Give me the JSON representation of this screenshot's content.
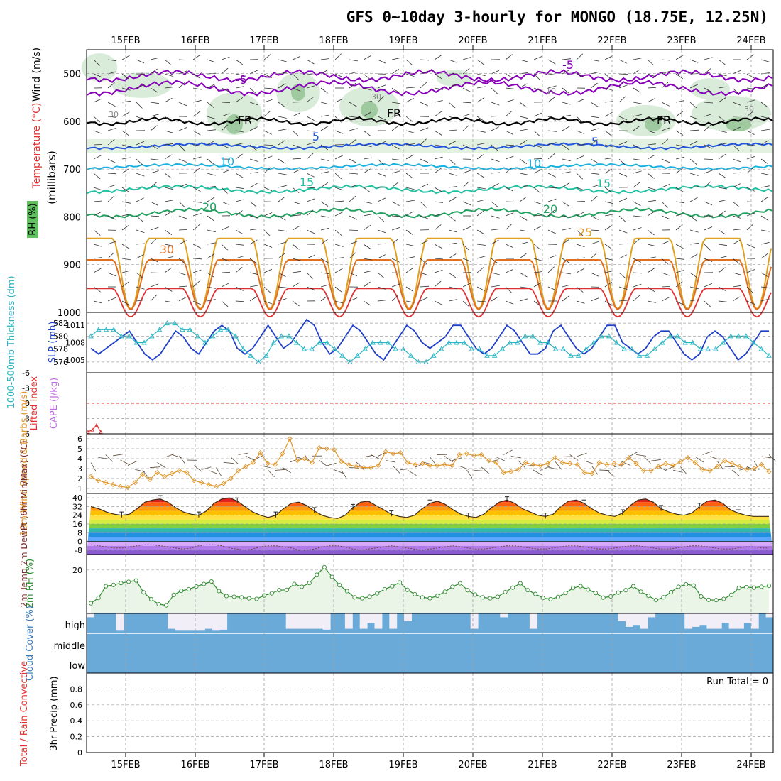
{
  "title": "GFS 0~10day 3-hourly for MONGO (18.75E, 12.25N)",
  "colors": {
    "grid": "#a0a0a0",
    "frame": "#000000",
    "slp": "#1f3fc8",
    "thickness": "#2bb5c4",
    "li": "#e03030",
    "cape": "#c070e0",
    "wind": "#e0962a",
    "rh": "#2e8b2e",
    "rh_fill": "#eaf5e8",
    "cloud": "#6aaad8",
    "cloud_bg": "#f1eef8",
    "barb": "#303030",
    "temp_heat": "#e33a22",
    "purple": "#8800bb",
    "blue": "#2255dd",
    "cyan": "#1ab0e0",
    "teal": "#20c0a0",
    "green": "#22a060",
    "orange": "#e0a020",
    "dorange": "#e07020",
    "red": "#e03030"
  },
  "chart_data": [
    {
      "id": "upper-air",
      "type": "heatmap",
      "xlabel_top": [
        "15FEB",
        "16FEB",
        "17FEB",
        "18FEB",
        "19FEB",
        "20FEB",
        "21FEB",
        "22FEB",
        "23FEB",
        "24FEB"
      ],
      "xlabel_bottom": [
        "15FEB",
        "16FEB",
        "17FEB",
        "18FEB",
        "19FEB",
        "20FEB",
        "21FEB",
        "22FEB",
        "23FEB",
        "24FEB"
      ],
      "ylabel": "(millibars)",
      "ylabel_wind": "Wind (m/s)",
      "ylabel_temp": "Temperature (°C)",
      "ylabel_rh": "RH (%)",
      "yticks": [
        "500",
        "600",
        "700",
        "800",
        "900",
        "1000"
      ],
      "ylim": [
        450,
        1000
      ],
      "temperature_contours": [
        {
          "label": "-5",
          "level_mb": [
            520,
            500
          ],
          "color": "purple"
        },
        {
          "label": "FR",
          "level_mb": 600,
          "color": "black"
        },
        {
          "label": "5",
          "level_mb": 650,
          "color": "blue"
        },
        {
          "label": "10",
          "level_mb": 693,
          "color": "cyan"
        },
        {
          "label": "15",
          "level_mb": 740,
          "color": "teal"
        },
        {
          "label": "20",
          "level_mb": 790,
          "color": "green"
        },
        {
          "label": "25",
          "level_mb": 845,
          "color": "orange"
        },
        {
          "label": "30",
          "level_mb": 880,
          "color": "dorange"
        }
      ],
      "inline_labels": [
        "-5",
        "-5",
        "FR",
        "FR",
        "FR",
        "5",
        "5",
        "10",
        "10",
        "15",
        "15",
        "20",
        "20",
        "25",
        "30",
        "30",
        "30",
        "10",
        "30"
      ]
    },
    {
      "id": "thickness-slp",
      "type": "line",
      "ylabel_left": "1000-500mb Thickness (dm)",
      "ylabel_right": "SLP (mb)",
      "yticks_left": [
        "576",
        "578",
        "580",
        "582"
      ],
      "yticks_right": [
        "1005",
        "1008",
        "1011"
      ],
      "series": [
        {
          "name": "SLP (mb)",
          "values": [
            1007,
            1006,
            1007,
            1008,
            1009,
            1010,
            1008,
            1006,
            1005,
            1006,
            1008,
            1010,
            1009,
            1007,
            1006,
            1008,
            1010,
            1011,
            1010,
            1007,
            1006,
            1007,
            1009,
            1011,
            1009,
            1007,
            1008,
            1010,
            1012,
            1011,
            1008,
            1006,
            1007,
            1009,
            1011,
            1010,
            1008,
            1006,
            1005,
            1007,
            1009,
            1011,
            1010,
            1008,
            1007,
            1008,
            1009,
            1011,
            1011,
            1009,
            1007,
            1006,
            1007,
            1009,
            1011,
            1010,
            1008,
            1006,
            1006,
            1007,
            1010,
            1011,
            1009,
            1007,
            1006,
            1007,
            1009,
            1011,
            1011,
            1008,
            1007,
            1006,
            1007,
            1009,
            1010,
            1010,
            1008,
            1006,
            1005,
            1006,
            1009,
            1010,
            1009,
            1007,
            1005,
            1006,
            1008,
            1010,
            1010
          ]
        },
        {
          "name": "1000-500mb Thickness (dm)",
          "values": [
            580,
            581,
            581,
            581,
            580,
            580,
            579,
            579,
            580,
            581,
            582,
            582,
            581,
            581,
            580,
            579,
            580,
            581,
            581,
            580,
            578,
            577,
            576,
            577,
            579,
            580,
            580,
            579,
            578,
            578,
            579,
            579,
            578,
            577,
            576,
            577,
            578,
            579,
            579,
            579,
            578,
            578,
            577,
            576,
            576,
            577,
            578,
            579,
            579,
            579,
            578,
            578,
            577,
            577,
            578,
            579,
            579,
            580,
            580,
            579,
            579,
            578,
            578,
            577,
            577,
            578,
            579,
            580,
            580,
            579,
            578,
            578,
            577,
            577,
            578,
            579,
            580,
            580,
            579,
            579,
            578,
            578,
            578,
            579,
            580,
            580,
            580,
            579,
            578,
            577
          ]
        }
      ]
    },
    {
      "id": "li-cape",
      "type": "line",
      "ylabel_left": "Lifted Index",
      "ylabel_right": "CAPE (J/kg)",
      "yticks": [
        "6",
        "3",
        "0",
        "-3",
        "-6"
      ],
      "series": [
        {
          "name": "Lifted Index",
          "values": [
            5.6,
            5.2,
            4.3,
            5.6
          ]
        },
        {
          "name": "CAPE (J/kg)",
          "values": []
        }
      ]
    },
    {
      "id": "wind10m",
      "type": "line",
      "ylabel": "10m Wind Speed & Barbs (m/s)",
      "yticks": [
        "1",
        "2",
        "3",
        "4",
        "5",
        "6"
      ],
      "ylim": [
        0.5,
        6.5
      ],
      "series": [
        {
          "name": "10m Wind Speed",
          "values": [
            2.2,
            1.8,
            1.6,
            1.4,
            1.2,
            1.1,
            1.6,
            2.4,
            1.9,
            2.6,
            2.2,
            2.5,
            2.8,
            2.6,
            1.8,
            1.6,
            1.4,
            1.2,
            1.5,
            2.0,
            2.8,
            3.2,
            3.6,
            4.6,
            3.5,
            3.4,
            4.5,
            6.0,
            3.8,
            4.0,
            3.6,
            5.1,
            5.0,
            4.9,
            3.7,
            3.4,
            3.2,
            3.1,
            3.1,
            3.3,
            4.7,
            4.5,
            4.6,
            3.6,
            3.4,
            3.5,
            3.3,
            3.3,
            3.4,
            3.3,
            4.4,
            4.5,
            4.3,
            4.4,
            3.8,
            3.6,
            2.6,
            2.7,
            2.9,
            3.6,
            3.4,
            3.3,
            3.5,
            4.1,
            3.6,
            3.5,
            3.4,
            2.6,
            2.5,
            3.6,
            3.4,
            3.5,
            3.4,
            4.1,
            3.5,
            2.8,
            2.8,
            3.2,
            3.5,
            3.3,
            3.7,
            4.1,
            3.6,
            2.9,
            2.8,
            3.2,
            3.8,
            3.5,
            3.2,
            2.9,
            3.0,
            3.4,
            2.7
          ]
        }
      ]
    },
    {
      "id": "temp2m",
      "type": "line",
      "ylabel": "2m Temp 2m DewPt (6hr Min/Max) (°C)",
      "yticks": [
        "-8",
        "0",
        "8",
        "16",
        "24",
        "32",
        "40"
      ],
      "ylim": [
        -12,
        44
      ],
      "series": [
        {
          "name": "2m Temp",
          "values": [
            32,
            30,
            27,
            25,
            24,
            25,
            30,
            36,
            38,
            39,
            36,
            31,
            27,
            25,
            24,
            28,
            35,
            39,
            40,
            37,
            32,
            27,
            24,
            22,
            24,
            30,
            35,
            36,
            33,
            28,
            24,
            22,
            21,
            24,
            31,
            36,
            37,
            33,
            29,
            25,
            23,
            22,
            24,
            30,
            35,
            37,
            34,
            29,
            25,
            23,
            22,
            25,
            31,
            36,
            38,
            35,
            30,
            27,
            24,
            23,
            25,
            32,
            37,
            38,
            35,
            30,
            26,
            24,
            23,
            26,
            33,
            38,
            39,
            36,
            30,
            27,
            25,
            24,
            26,
            32,
            37,
            38,
            35,
            29,
            26,
            24,
            23,
            23,
            23
          ]
        },
        {
          "name": "2m DewPt",
          "values": [
            -3,
            -4,
            -5,
            -6,
            -6,
            -5,
            -4,
            -3,
            -3,
            -4,
            -5,
            -6,
            -7,
            -6,
            -4,
            -3,
            -3,
            -4,
            -6,
            -7,
            -8,
            -7,
            -5,
            -4,
            -4,
            -5,
            -6,
            -8,
            -8,
            -7,
            -5,
            -4,
            -4,
            -5,
            -7,
            -8,
            -7,
            -6,
            -5,
            -4,
            -5,
            -6,
            -7,
            -8,
            -7,
            -6,
            -5,
            -4,
            -5,
            -6,
            -7,
            -7,
            -6,
            -5,
            -4,
            -4,
            -5,
            -6,
            -7,
            -7,
            -6,
            -5,
            -4,
            -4,
            -5,
            -6,
            -7,
            -7,
            -6,
            -5,
            -4,
            -4,
            -5,
            -6,
            -7,
            -7,
            -6,
            -5,
            -4,
            -4,
            -5,
            -6,
            -7,
            -7,
            -6,
            -5,
            -5,
            -6,
            -6
          ]
        }
      ]
    },
    {
      "id": "rh2m",
      "type": "area",
      "ylabel": "2m RH (%)",
      "yticks": [
        "20"
      ],
      "ylim": [
        6,
        25
      ],
      "series": [
        {
          "name": "2m RH",
          "values": [
            9.3,
            11,
            14.8,
            15.2,
            15.8,
            16.2,
            16.6,
            12.8,
            10.6,
            9.0,
            8.6,
            12.0,
            13.3,
            13.8,
            14.7,
            15.5,
            16.3,
            13.2,
            11.6,
            11.4,
            11.2,
            10.9,
            10.7,
            11.8,
            12.5,
            13.5,
            13.6,
            15.5,
            14.6,
            15.8,
            18.5,
            20.9,
            17.8,
            15.1,
            13.2,
            11.2,
            10.9,
            11.4,
            12.5,
            13.8,
            14.8,
            16.0,
            13.6,
            12.2,
            11.2,
            10.9,
            11.7,
            13.0,
            14.6,
            15.7,
            13.5,
            12.1,
            11.2,
            10.9,
            11.4,
            12.9,
            14.3,
            15.7,
            13.5,
            12.3,
            11.0,
            10.6,
            11.3,
            12.6,
            14.2,
            14.8,
            13.7,
            12.6,
            11.1,
            11.5,
            12.7,
            13.5,
            14.8,
            13.0,
            11.7,
            10.3,
            11.2,
            12.9,
            14.6,
            15.4,
            15.0,
            11.5,
            10.4,
            10.3,
            10.7,
            12.0,
            14.2,
            14.5,
            14.3,
            14.6,
            14.9
          ]
        }
      ]
    },
    {
      "id": "cloud",
      "type": "bar",
      "ylabel": "Cloud Cover (%)",
      "yticks": [
        "high",
        "middle",
        "low"
      ],
      "series": [
        {
          "name": "high cloud",
          "values": [
            80,
            100,
            100,
            100,
            10,
            100,
            100,
            100,
            100,
            100,
            100,
            20,
            10,
            10,
            10,
            10,
            20,
            10,
            15,
            100,
            100,
            100,
            100,
            100,
            100,
            100,
            100,
            20,
            20,
            20,
            20,
            20,
            15,
            100,
            100,
            20,
            100,
            20,
            50,
            20,
            100,
            20,
            100,
            60,
            100,
            100,
            100,
            100,
            100,
            100,
            100,
            100,
            20,
            100,
            100,
            100,
            80,
            100,
            100,
            100,
            20,
            100,
            100,
            100,
            100,
            100,
            100,
            100,
            100,
            100,
            100,
            100,
            60,
            30,
            40,
            20,
            80,
            100,
            100,
            100,
            100,
            20,
            30,
            40,
            20,
            20,
            50,
            20,
            20,
            50,
            20,
            100,
            80
          ]
        }
      ]
    },
    {
      "id": "precip",
      "type": "bar",
      "ylabel": "3hr Precip (mm)",
      "ylabel_left": "Total / Rain Convective",
      "yticks": [
        "0",
        "0.2",
        "0.4",
        "0.6",
        "0.8"
      ],
      "ylim": [
        0,
        1
      ],
      "annotation": "Run Total = 0",
      "series": [
        {
          "name": "Total / Rain",
          "values": []
        },
        {
          "name": "Convective",
          "values": []
        }
      ]
    }
  ]
}
